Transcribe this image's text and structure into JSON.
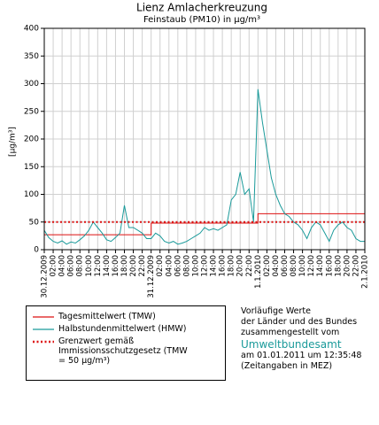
{
  "chart_data": {
    "type": "line",
    "title": "Lienz Amlacherkreuzung",
    "subtitle": "Feinstaub (PM10) in µg/m³",
    "y_label": "[µg/m³]",
    "ylim": [
      0,
      400
    ],
    "yticks": [
      0,
      50,
      100,
      150,
      200,
      250,
      300,
      350,
      400
    ],
    "xlim": [
      0,
      72
    ],
    "xticks": [
      {
        "value": 0,
        "label": "30.12.2009"
      },
      {
        "value": 2,
        "label": "02:00"
      },
      {
        "value": 4,
        "label": "04:00"
      },
      {
        "value": 6,
        "label": "06:00"
      },
      {
        "value": 8,
        "label": "08:00"
      },
      {
        "value": 10,
        "label": "10:00"
      },
      {
        "value": 12,
        "label": "12:00"
      },
      {
        "value": 14,
        "label": "14:00"
      },
      {
        "value": 16,
        "label": "16:00"
      },
      {
        "value": 18,
        "label": "18:00"
      },
      {
        "value": 20,
        "label": "20:00"
      },
      {
        "value": 22,
        "label": "22:00"
      },
      {
        "value": 24,
        "label": "31.12.2009"
      },
      {
        "value": 26,
        "label": "02:00"
      },
      {
        "value": 28,
        "label": "04:00"
      },
      {
        "value": 30,
        "label": "06:00"
      },
      {
        "value": 32,
        "label": "08:00"
      },
      {
        "value": 34,
        "label": "10:00"
      },
      {
        "value": 36,
        "label": "12:00"
      },
      {
        "value": 38,
        "label": "14:00"
      },
      {
        "value": 40,
        "label": "16:00"
      },
      {
        "value": 42,
        "label": "18:00"
      },
      {
        "value": 44,
        "label": "20:00"
      },
      {
        "value": 46,
        "label": "22:00"
      },
      {
        "value": 48,
        "label": "1.1.2010"
      },
      {
        "value": 50,
        "label": "02:00"
      },
      {
        "value": 52,
        "label": "04:00"
      },
      {
        "value": 54,
        "label": "06:00"
      },
      {
        "value": 56,
        "label": "08:00"
      },
      {
        "value": 58,
        "label": "10:00"
      },
      {
        "value": 60,
        "label": "12:00"
      },
      {
        "value": 62,
        "label": "14:00"
      },
      {
        "value": 64,
        "label": "16:00"
      },
      {
        "value": 66,
        "label": "18:00"
      },
      {
        "value": 68,
        "label": "20:00"
      },
      {
        "value": 70,
        "label": "22:00"
      },
      {
        "value": 72,
        "label": "2.1.2010"
      }
    ],
    "grid": true,
    "series": [
      {
        "name": "Tagesmittelwert (TMW)",
        "color": "#dd1111",
        "dash": "solid",
        "x": [
          0,
          24,
          24,
          48,
          48,
          72
        ],
        "values": [
          27,
          27,
          48,
          48,
          65,
          65
        ]
      },
      {
        "name": "Halbstundenmittelwert (HMW)",
        "color": "#1a9a9a",
        "dash": "solid",
        "x": [
          0,
          1,
          2,
          3,
          4,
          5,
          6,
          7,
          8,
          9,
          10,
          11,
          12,
          13,
          14,
          15,
          16,
          17,
          18,
          19,
          20,
          21,
          22,
          23,
          24,
          25,
          26,
          27,
          28,
          29,
          30,
          31,
          32,
          33,
          34,
          35,
          36,
          37,
          38,
          39,
          40,
          41,
          42,
          43,
          44,
          45,
          46,
          47,
          48,
          49,
          50,
          51,
          52,
          53,
          54,
          55,
          56,
          57,
          58,
          59,
          60,
          61,
          62,
          63,
          64,
          65,
          66,
          67,
          68,
          69,
          70,
          71,
          72
        ],
        "values": [
          35,
          22,
          15,
          12,
          16,
          10,
          14,
          12,
          18,
          25,
          35,
          50,
          40,
          30,
          18,
          15,
          22,
          30,
          80,
          40,
          40,
          35,
          30,
          20,
          20,
          30,
          25,
          15,
          12,
          15,
          10,
          12,
          15,
          20,
          25,
          30,
          40,
          35,
          38,
          35,
          40,
          45,
          90,
          100,
          140,
          100,
          110,
          50,
          290,
          230,
          180,
          130,
          100,
          80,
          65,
          60,
          50,
          45,
          35,
          20,
          40,
          50,
          45,
          30,
          15,
          35,
          45,
          50,
          40,
          35,
          20,
          15,
          15
        ]
      },
      {
        "name": "Grenzwert gemäß Immissionsschutzgesetz (TMW = 50 µg/m³)",
        "color": "#dd1111",
        "dash": "dotted",
        "x": [
          0,
          72
        ],
        "values": [
          50,
          50
        ]
      }
    ],
    "notes": [
      "Vorläufige Werte",
      "der Länder und des Bundes",
      "zusammengestellt vom",
      "Umweltbundesamt",
      "am 01.01.2011 um 12:35:48",
      "(Zeitangaben in MEZ)"
    ]
  }
}
